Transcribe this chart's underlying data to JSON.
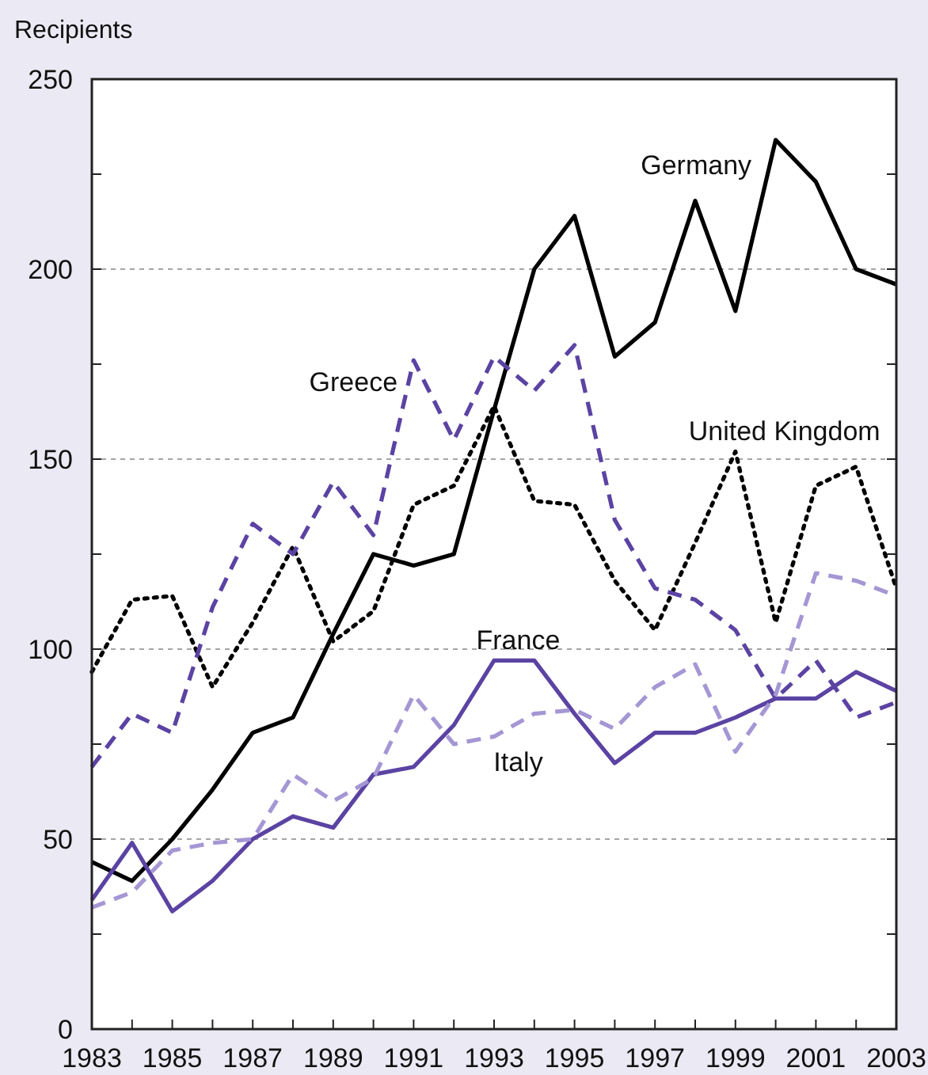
{
  "chart_data": {
    "type": "line",
    "ylabel": "Recipients",
    "x": [
      1983,
      1984,
      1985,
      1986,
      1987,
      1988,
      1989,
      1990,
      1991,
      1992,
      1993,
      1994,
      1995,
      1996,
      1997,
      1998,
      1999,
      2000,
      2001,
      2002,
      2003
    ],
    "xlim": [
      1983,
      2003
    ],
    "xticks": [
      1983,
      {
        "value": 1984,
        "label": null
      },
      1985,
      {
        "value": 1986,
        "label": null
      },
      1987,
      {
        "value": 1988,
        "label": null
      },
      1989,
      {
        "value": 1990,
        "label": null
      },
      1991,
      {
        "value": 1992,
        "label": null
      },
      1993,
      {
        "value": 1994,
        "label": null
      },
      1995,
      {
        "value": 1996,
        "label": null
      },
      1997,
      {
        "value": 1998,
        "label": null
      },
      1999,
      {
        "value": 2000,
        "label": null
      },
      2001,
      {
        "value": 2002,
        "label": null
      },
      2003
    ],
    "ylim": [
      0,
      250
    ],
    "yticks": [
      0,
      {
        "value": 25,
        "label": null
      },
      50,
      {
        "value": 75,
        "label": null
      },
      100,
      {
        "value": 125,
        "label": null
      },
      150,
      {
        "value": 175,
        "label": null
      },
      200,
      {
        "value": 225,
        "label": null
      },
      250
    ],
    "grid": "y",
    "series": [
      {
        "name": "Germany",
        "color": "#000000",
        "line_style": "solid",
        "values": [
          44,
          39,
          50,
          63,
          78,
          82,
          104,
          125,
          122,
          125,
          163,
          200,
          214,
          177,
          186,
          218,
          189,
          234,
          223,
          200,
          196
        ]
      },
      {
        "name": "United Kingdom",
        "color": "#000000",
        "line_style": "dotted",
        "values": [
          94,
          113,
          114,
          90,
          107,
          127,
          102,
          110,
          138,
          143,
          164,
          139,
          138,
          118,
          105,
          128,
          152,
          107,
          143,
          148,
          116
        ]
      },
      {
        "name": "Greece",
        "color": "#5b43a3",
        "line_style": "dashed",
        "values": [
          69,
          83,
          78,
          111,
          133,
          125,
          144,
          130,
          176,
          155,
          177,
          168,
          180,
          134,
          116,
          113,
          105,
          87,
          97,
          82,
          86
        ]
      },
      {
        "name": "France",
        "color": "#5b43a3",
        "line_style": "solid",
        "values": [
          34,
          49,
          31,
          39,
          50,
          56,
          53,
          67,
          69,
          80,
          97,
          97,
          83,
          70,
          78,
          78,
          82,
          87,
          87,
          94,
          89
        ]
      },
      {
        "name": "Italy",
        "color": "#a596d4",
        "line_style": "dashed",
        "values": [
          32,
          36,
          47,
          49,
          50,
          67,
          60,
          66,
          88,
          75,
          77,
          83,
          84,
          79,
          90,
          96,
          73,
          88,
          120,
          118,
          114
        ]
      }
    ]
  }
}
